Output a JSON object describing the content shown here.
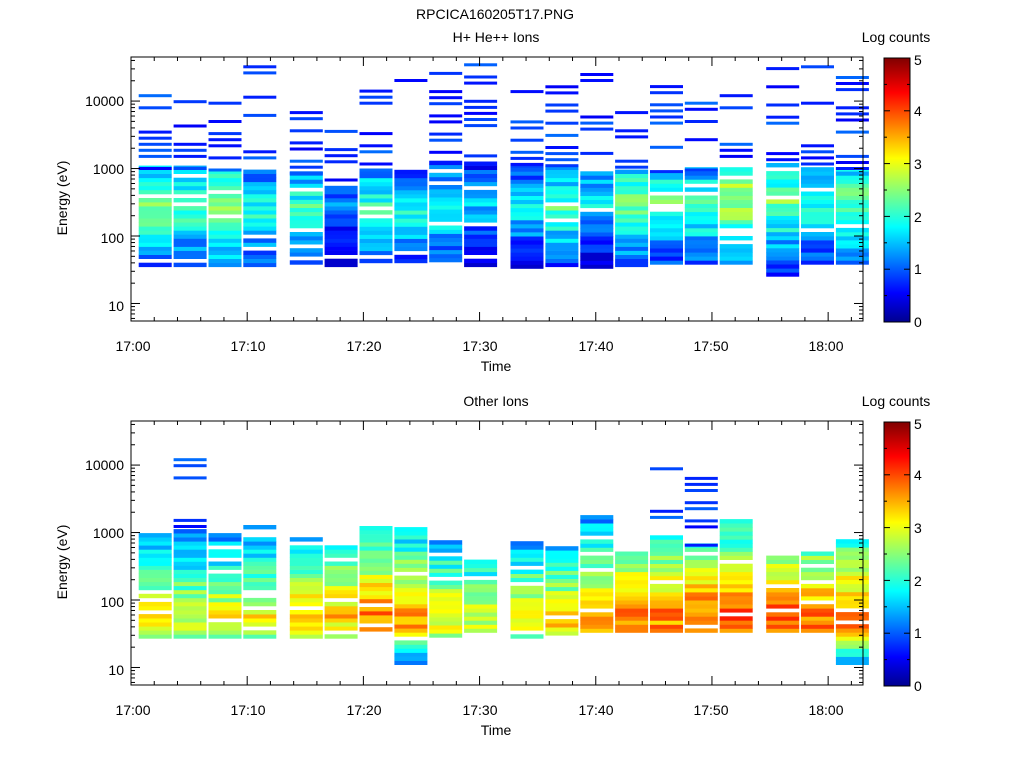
{
  "figure": {
    "title": "RPCICA160205T17.PNG"
  },
  "chart_data": [
    {
      "type": "heatmap",
      "title": "H+ He++ Ions",
      "xlabel": "Time",
      "ylabel": "Energy (eV)",
      "x_range": [
        "17:00",
        "18:03"
      ],
      "x_ticks": [
        "17:00",
        "17:10",
        "17:20",
        "17:30",
        "17:40",
        "17:50",
        "18:00"
      ],
      "y_scale": "log",
      "y_range": [
        5.5,
        45000
      ],
      "y_ticks": [
        "10",
        "100",
        "1000",
        "10000"
      ],
      "colorbar": {
        "label": "Log counts",
        "range": [
          0,
          5
        ],
        "ticks": [
          "0",
          "1",
          "2",
          "3",
          "4",
          "5"
        ]
      },
      "time_bins": [
        "17:02",
        "17:05",
        "17:08",
        "17:11",
        "17:15",
        "17:18",
        "17:21",
        "17:24",
        "17:27",
        "17:30",
        "17:34",
        "17:37",
        "17:40",
        "17:43",
        "17:46",
        "17:49",
        "17:52",
        "17:56",
        "17:59",
        "18:02"
      ],
      "profile": {
        "low": [
          35,
          35,
          35,
          35,
          38,
          35,
          40,
          40,
          36,
          35,
          33,
          35,
          33,
          35,
          38,
          38,
          38,
          22,
          38,
          38
        ],
        "high": [
          1000,
          1000,
          950,
          950,
          850,
          550,
          950,
          900,
          1150,
          1250,
          1150,
          1100,
          900,
          850,
          900,
          950,
          1000,
          1100,
          950,
          1000
        ],
        "peak": [
          2.8,
          2.6,
          3.0,
          2.4,
          2.5,
          1.6,
          2.6,
          2.4,
          2.4,
          2.0,
          2.2,
          2.6,
          2.2,
          2.8,
          2.6,
          2.6,
          3.2,
          2.8,
          2.4,
          2.8
        ],
        "peak_energy": [
          250,
          250,
          250,
          200,
          250,
          250,
          220,
          200,
          250,
          300,
          250,
          230,
          300,
          300,
          300,
          250,
          350,
          300,
          250,
          300
        ],
        "sparse_max": [
          17000,
          14000,
          29000,
          33000,
          19000,
          4600,
          17000,
          22000,
          38000,
          40000,
          34000,
          24000,
          40000,
          16000,
          22000,
          9700,
          33000,
          31000,
          33000,
          40000
        ],
        "sparse_value": 0.5
      }
    },
    {
      "type": "heatmap",
      "title": "Other Ions",
      "xlabel": "Time",
      "ylabel": "Energy (eV)",
      "x_range": [
        "17:00",
        "18:03"
      ],
      "x_ticks": [
        "17:00",
        "17:10",
        "17:20",
        "17:30",
        "17:40",
        "17:50",
        "18:00"
      ],
      "y_scale": "log",
      "y_range": [
        5.5,
        45000
      ],
      "y_ticks": [
        "10",
        "100",
        "1000",
        "10000"
      ],
      "colorbar": {
        "label": "Log counts",
        "range": [
          0,
          5
        ],
        "ticks": [
          "0",
          "1",
          "2",
          "3",
          "4",
          "5"
        ]
      },
      "time_bins": [
        "17:02",
        "17:05",
        "17:08",
        "17:11",
        "17:15",
        "17:18",
        "17:21",
        "17:24",
        "17:27",
        "17:30",
        "17:34",
        "17:37",
        "17:40",
        "17:43",
        "17:46",
        "17:49",
        "17:52",
        "17:56",
        "17:59",
        "18:02"
      ],
      "profile": {
        "low": [
          27,
          27,
          27,
          27,
          27,
          27,
          30,
          11,
          28,
          33,
          27,
          30,
          33,
          33,
          33,
          33,
          33,
          33,
          33,
          11
        ],
        "high": [
          900,
          1000,
          950,
          1200,
          800,
          580,
          1200,
          1100,
          700,
          360,
          650,
          600,
          1600,
          500,
          900,
          650,
          1550,
          440,
          480,
          850
        ],
        "peak": [
          3.5,
          3.4,
          3.5,
          3.5,
          3.8,
          3.8,
          4.2,
          4.0,
          3.6,
          3.4,
          3.5,
          3.6,
          4.0,
          4.2,
          4.2,
          4.3,
          4.4,
          4.4,
          4.2,
          4.2
        ],
        "peak_energy": [
          55,
          55,
          55,
          55,
          55,
          55,
          55,
          55,
          55,
          55,
          55,
          55,
          55,
          55,
          55,
          55,
          55,
          55,
          55,
          55
        ],
        "sparse_max": [
          900,
          14000,
          950,
          1200,
          800,
          580,
          1200,
          1100,
          700,
          360,
          650,
          600,
          1600,
          500,
          14000,
          9700,
          1550,
          440,
          480,
          850
        ],
        "sparse_value": 0.5
      }
    }
  ]
}
